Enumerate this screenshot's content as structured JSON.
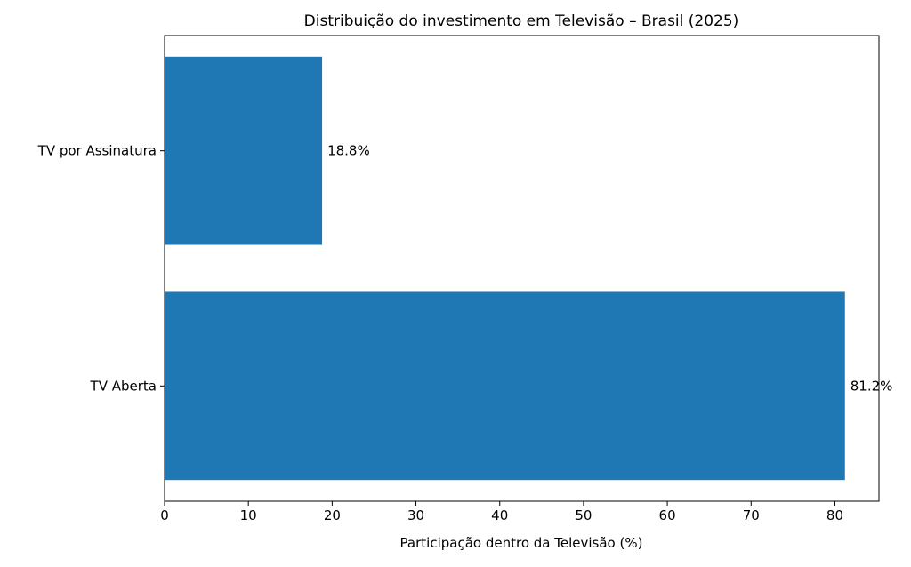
{
  "chart_data": {
    "type": "bar",
    "orientation": "horizontal",
    "title": "Distribuição do investimento em Televisão – Brasil (2025)",
    "xlabel": "Participação dentro da Televisão (%)",
    "ylabel": "",
    "categories": [
      "TV Aberta",
      "TV por Assinatura"
    ],
    "values": [
      81.2,
      18.8
    ],
    "data_labels": [
      "81.2%",
      "18.8%"
    ],
    "xlim": [
      0,
      85.26
    ],
    "xticks": [
      0,
      10,
      20,
      30,
      40,
      50,
      60,
      70,
      80
    ],
    "grid": false,
    "bar_color": "#1f77b4"
  }
}
